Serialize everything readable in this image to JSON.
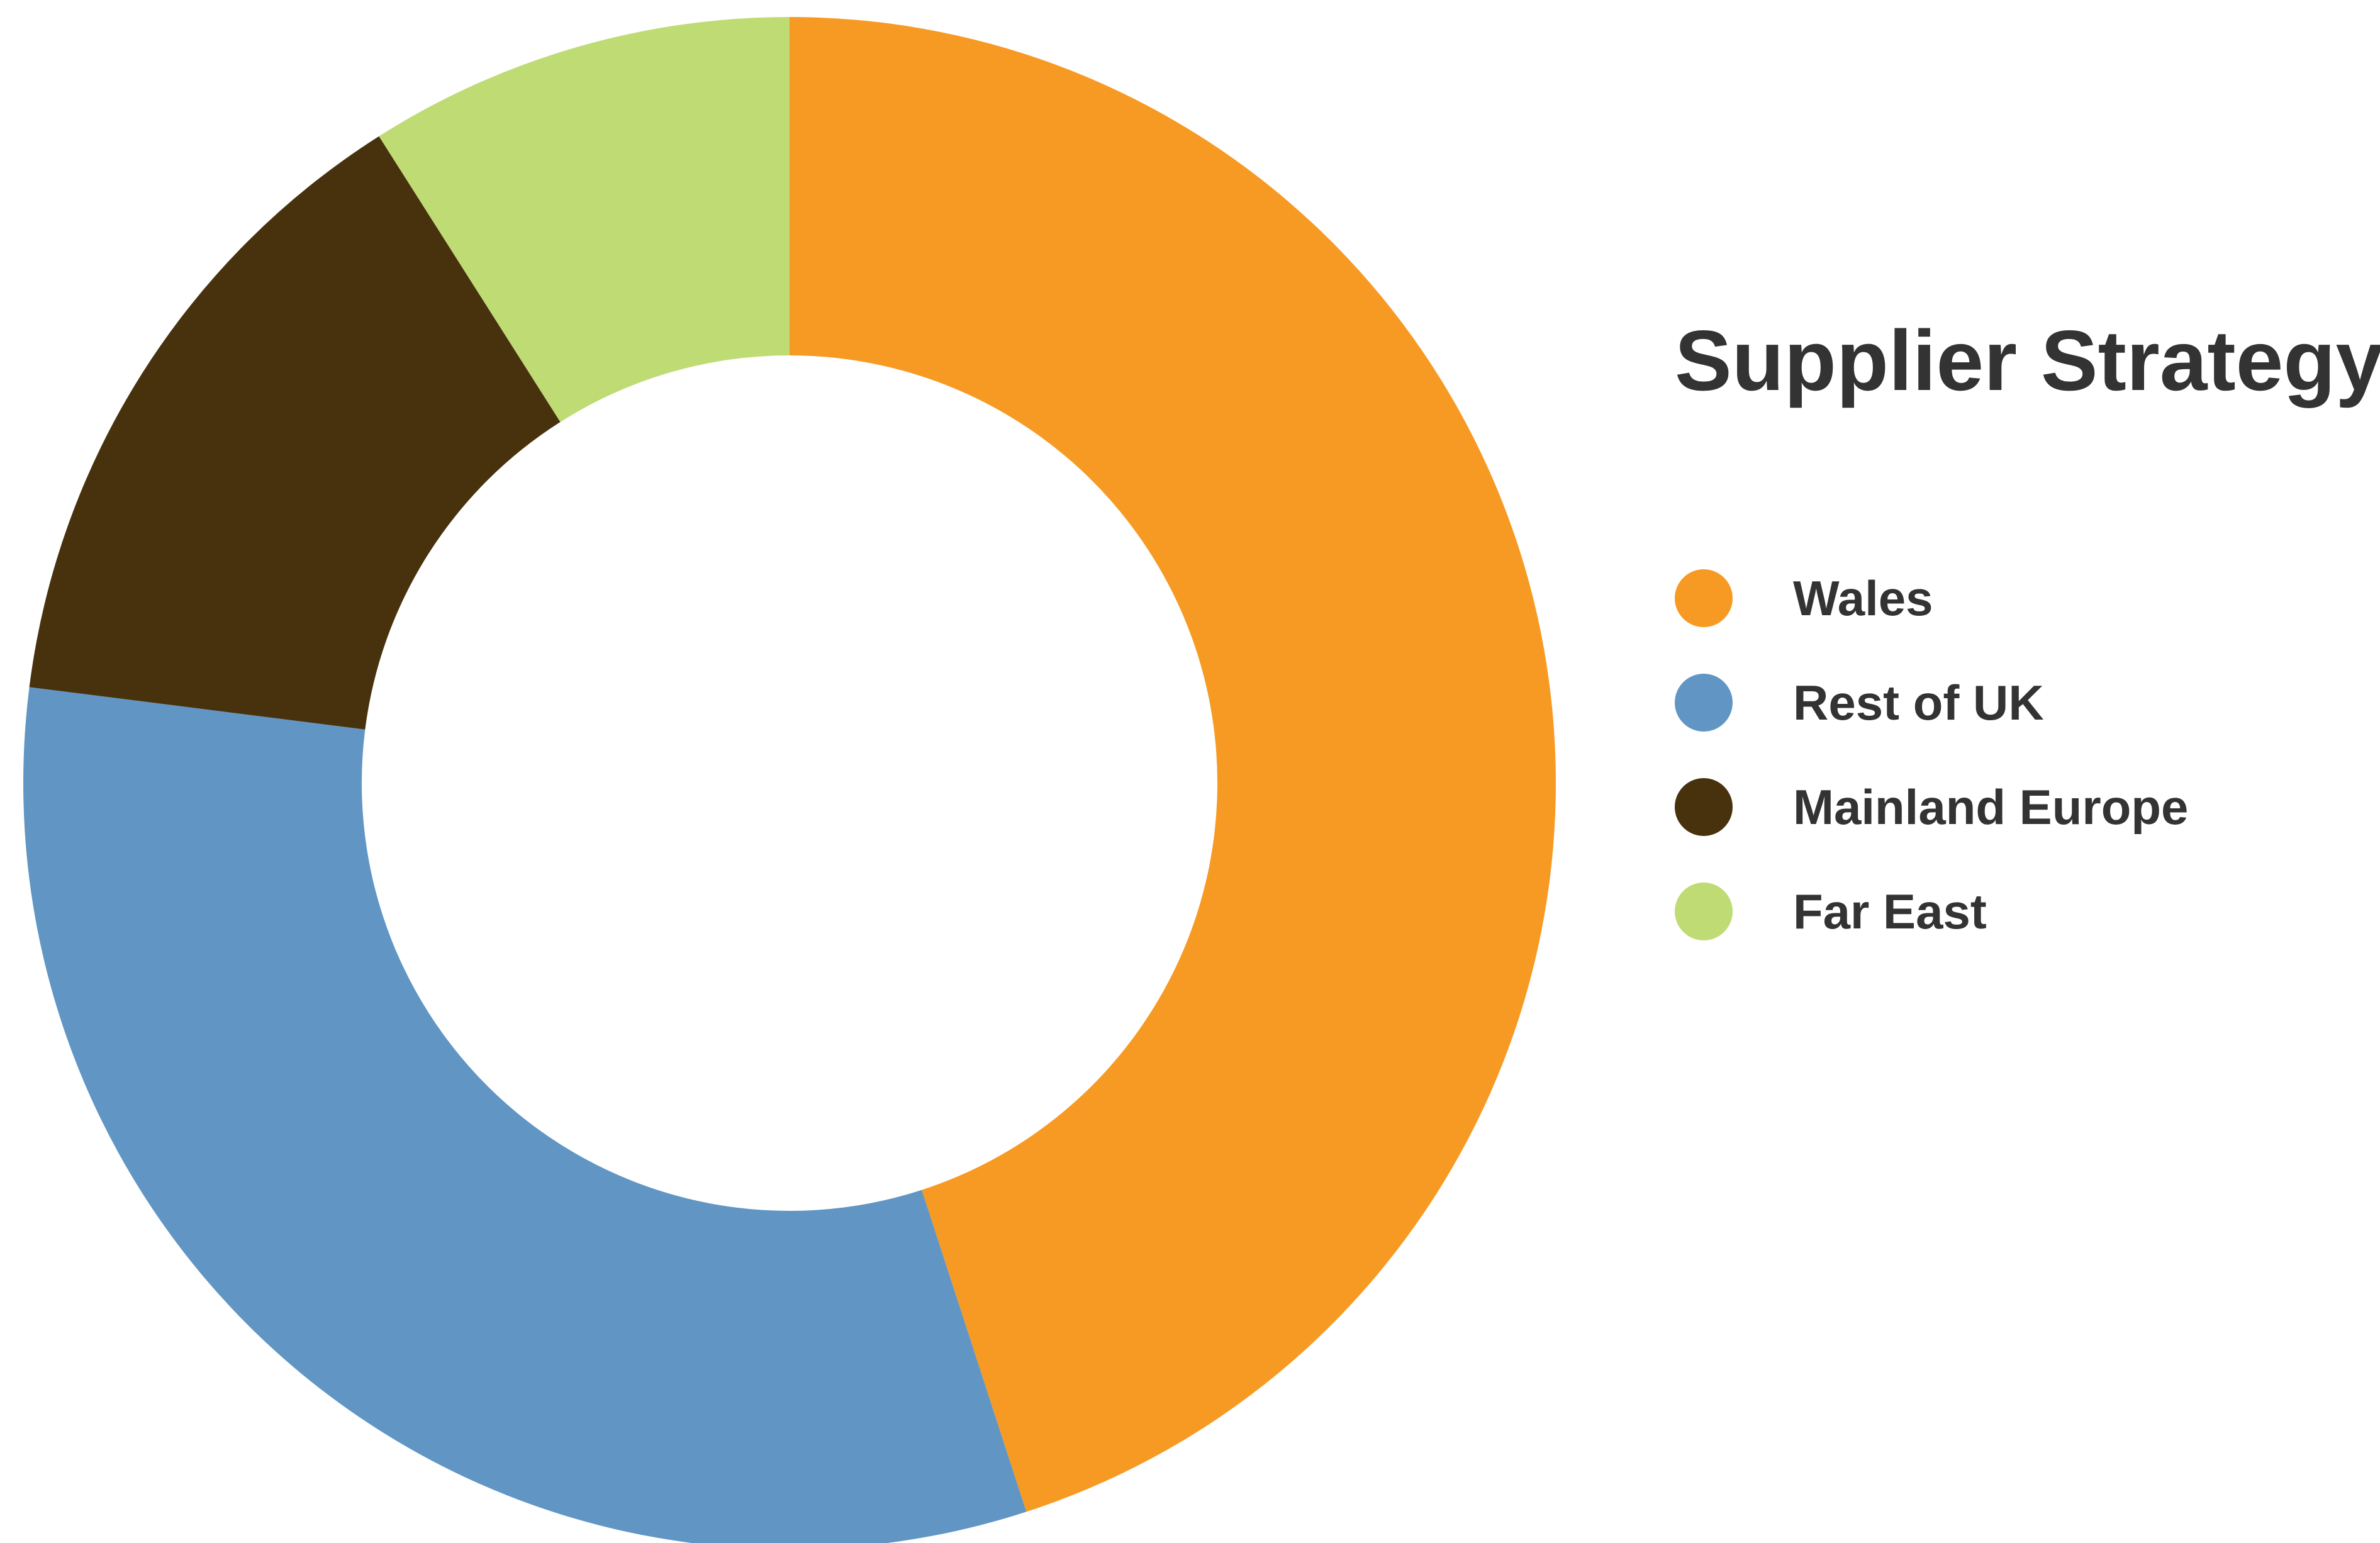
{
  "chart_data": {
    "type": "pie",
    "title": "Supplier Strategy",
    "donut": true,
    "categories": [
      "Wales",
      "Rest of UK",
      "Mainland Europe",
      "Far East"
    ],
    "values": [
      45,
      32,
      14,
      9
    ],
    "colors": [
      "#F79A23",
      "#6196C4",
      "#48320E",
      "#BFDB74"
    ],
    "legend_position": "right",
    "start": "top",
    "direction": "clockwise"
  }
}
